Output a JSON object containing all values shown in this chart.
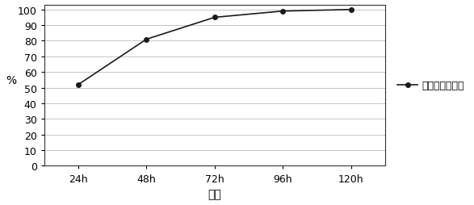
{
  "x_labels": [
    "24h",
    "48h",
    "72h",
    "96h",
    "120h"
  ],
  "x_values": [
    1,
    2,
    3,
    4,
    5
  ],
  "y_values": [
    52,
    81,
    95,
    99,
    100
  ],
  "y_ticks": [
    0,
    10,
    20,
    30,
    40,
    50,
    60,
    70,
    80,
    90,
    100
  ],
  "y_label": "%",
  "x_label": "时间",
  "legend_label": "多氯联苯去除率",
  "line_color": "#1a1a1a",
  "marker": "o",
  "marker_size": 4,
  "line_width": 1.2,
  "ylim": [
    0,
    103
  ],
  "background_color": "#ffffff"
}
